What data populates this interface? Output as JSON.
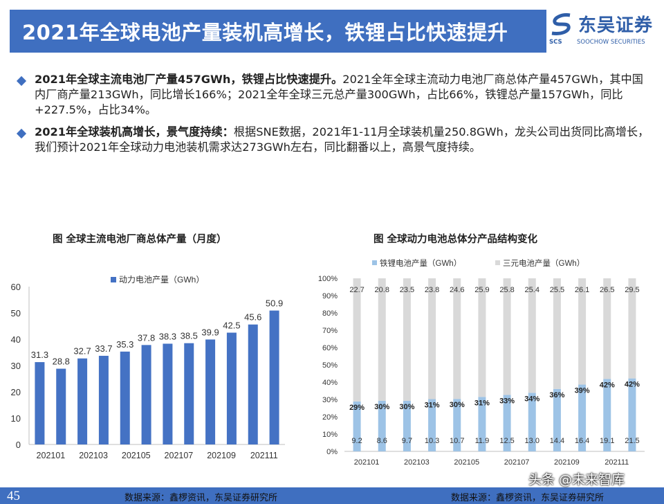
{
  "header": {
    "title": "2021年全球电池产量装机高增长，铁锂占比快速提升",
    "logo_cn": "东吴证券",
    "logo_abbr": "SCS",
    "logo_en": "SOOCHOW SECURITIES"
  },
  "bullets": [
    {
      "bold": "2021年全球主流电池厂产量457GWh，铁锂占比快速提升。",
      "text": "2021全年全球主流动力电池厂商总体产量457GWh，其中国内厂商产量213GWh，同比增长166%；2021全年全球三元总产量300GWh，占比66%，铁锂总产量157GWh，同比+227.5%，占比34%。"
    },
    {
      "bold": "2021年全球装机高增长，景气度持续：",
      "text": "根据SNE数据，2021年1-11月全球装机量250.8GWh，龙头公司出货同比高增长，我们预计2021年全球动力电池装机需求达273GWh左右，同比翻番以上，高景气度持续。"
    }
  ],
  "chart_data": [
    {
      "type": "bar",
      "title": "图 全球主流电池厂商总体产量（月度）",
      "categories": [
        "202101",
        "202102",
        "202103",
        "202104",
        "202105",
        "202106",
        "202107",
        "202108",
        "202109",
        "202110",
        "202111",
        "202112"
      ],
      "x_tick_labels": [
        "202101",
        "202103",
        "202105",
        "202107",
        "202109",
        "202111"
      ],
      "series": [
        {
          "name": "动力电池产量（GWh）",
          "values": [
            31.3,
            28.8,
            32.7,
            33.7,
            35.3,
            37.8,
            38.3,
            38.5,
            39.9,
            42.5,
            45.6,
            50.9
          ]
        }
      ],
      "ylim": [
        0,
        60
      ],
      "yticks": [
        0,
        10,
        20,
        30,
        40,
        50,
        60
      ],
      "color": "#4472c4",
      "legend": "top-left"
    },
    {
      "type": "bar",
      "stacked": true,
      "title": "图 全球动力电池总体分产品结构变化",
      "categories": [
        "202101",
        "202102",
        "202103",
        "202104",
        "202105",
        "202106",
        "202107",
        "202108",
        "202109",
        "202110",
        "202111",
        "202112"
      ],
      "x_tick_labels": [
        "202101",
        "202103",
        "202105",
        "202107",
        "202109",
        "202111"
      ],
      "series": [
        {
          "name": "铁锂电池产量（GWh）",
          "values": [
            9.2,
            8.6,
            9.7,
            10.3,
            10.7,
            11.9,
            12.5,
            13.0,
            14.4,
            16.4,
            19.1,
            21.5
          ],
          "share_labels": [
            "29%",
            "30%",
            "30%",
            "31%",
            "30%",
            "31%",
            "33%",
            "34%",
            "36%",
            "39%",
            "42%",
            "42%"
          ],
          "color": "#9dc3e6"
        },
        {
          "name": "三元电池产量（GWh）",
          "values": [
            22.7,
            20.8,
            23.5,
            23.8,
            24.6,
            25.9,
            25.8,
            25.4,
            25.5,
            26.1,
            26.5,
            29.5
          ],
          "color": "#d9d9d9"
        }
      ],
      "yticks": [
        "0%",
        "10%",
        "20%",
        "30%",
        "40%",
        "50%",
        "60%",
        "70%",
        "80%",
        "90%",
        "100%"
      ],
      "legend": "top"
    }
  ],
  "footer": {
    "page": "45",
    "source_left": "数据来源：鑫椤资讯，东吴证券研究所",
    "source_right": "数据来源：鑫椤资讯，东吴证券研究所",
    "watermark": "头条 @未来智库"
  }
}
